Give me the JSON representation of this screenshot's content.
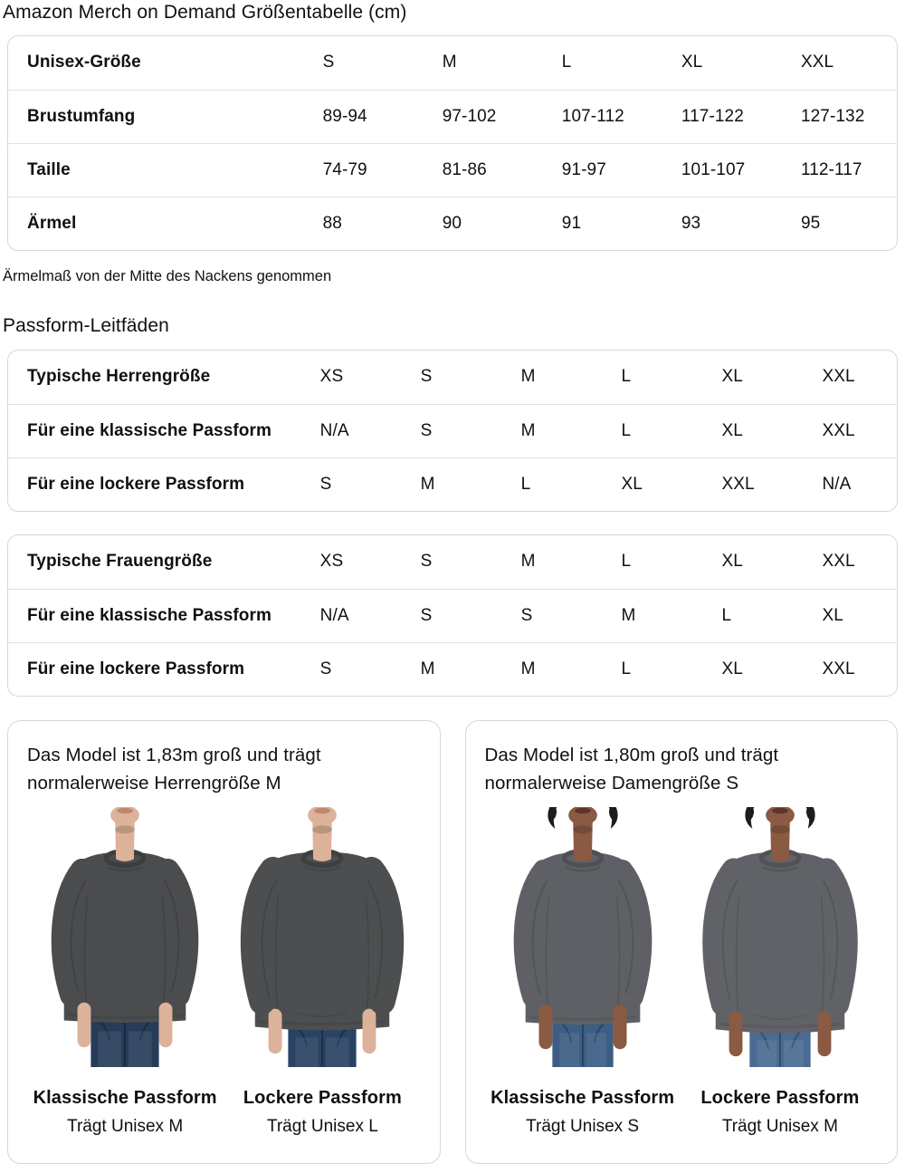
{
  "page_title": "Amazon Merch on Demand Größentabelle (cm)",
  "size_table": {
    "header_label": "Unisex-Größe",
    "columns": [
      "S",
      "M",
      "L",
      "XL",
      "XXL"
    ],
    "rows": [
      {
        "label": "Brustumfang",
        "values": [
          "89-94",
          "97-102",
          "107-112",
          "117-122",
          "127-132"
        ]
      },
      {
        "label": "Taille",
        "values": [
          "74-79",
          "81-86",
          "91-97",
          "101-107",
          "112-117"
        ]
      },
      {
        "label": "Ärmel",
        "values": [
          "88",
          "90",
          "91",
          "93",
          "95"
        ]
      }
    ]
  },
  "sleeve_note": "Ärmelmaß von der Mitte des Nackens genommen",
  "fit_guides_heading": "Passform-Leitfäden",
  "fit_tables": [
    {
      "rows": [
        {
          "label": "Typische Herrengröße",
          "values": [
            "XS",
            "S",
            "M",
            "L",
            "XL",
            "XXL"
          ]
        },
        {
          "label": "Für eine klassische Passform",
          "values": [
            "N/A",
            "S",
            "M",
            "L",
            "XL",
            "XXL"
          ]
        },
        {
          "label": "Für eine lockere Passform",
          "values": [
            "S",
            "M",
            "L",
            "XL",
            "XXL",
            "N/A"
          ]
        }
      ]
    },
    {
      "rows": [
        {
          "label": "Typische Frauengröße",
          "values": [
            "XS",
            "S",
            "M",
            "L",
            "XL",
            "XXL"
          ]
        },
        {
          "label": "Für eine klassische Passform",
          "values": [
            "N/A",
            "S",
            "S",
            "M",
            "L",
            "XL"
          ]
        },
        {
          "label": "Für eine lockere Passform",
          "values": [
            "S",
            "M",
            "M",
            "L",
            "XL",
            "XXL"
          ]
        }
      ]
    }
  ],
  "model_cards": [
    {
      "description": "Das Model ist 1,83m groß und trägt normalerweise Herrengröße M",
      "figures": [
        {
          "caption": "Klassische Passform",
          "subcaption": "Trägt Unisex M",
          "fit": "classic",
          "female": false,
          "colors": {
            "skin": "#dcb29a",
            "lips": "#bd8169",
            "shirt": "#4a4c4e",
            "shade": "#3b3d3f",
            "jeans": "#263c59",
            "hair": ""
          }
        },
        {
          "caption": "Lockere Passform",
          "subcaption": "Trägt Unisex L",
          "fit": "loose",
          "female": false,
          "colors": {
            "skin": "#dcb29a",
            "lips": "#bd8169",
            "shirt": "#4c4e50",
            "shade": "#3d3f41",
            "jeans": "#2a4263",
            "hair": ""
          }
        }
      ]
    },
    {
      "description": "Das Model ist 1,80m groß und trägt normalerweise Damengröße S",
      "figures": [
        {
          "caption": "Klassische Passform",
          "subcaption": "Trägt Unisex S",
          "fit": "classic",
          "female": true,
          "colors": {
            "skin": "#8a5a42",
            "lips": "#59302a",
            "shirt": "#5e6065",
            "shade": "#4e5055",
            "jeans": "#3c5d84",
            "hair": "#221c19"
          }
        },
        {
          "caption": "Lockere Passform",
          "subcaption": "Trägt Unisex M",
          "fit": "loose",
          "female": true,
          "colors": {
            "skin": "#8a5a42",
            "lips": "#59302a",
            "shirt": "#606267",
            "shade": "#505257",
            "jeans": "#4a6b92",
            "hair": "#221c19"
          }
        }
      ]
    }
  ]
}
